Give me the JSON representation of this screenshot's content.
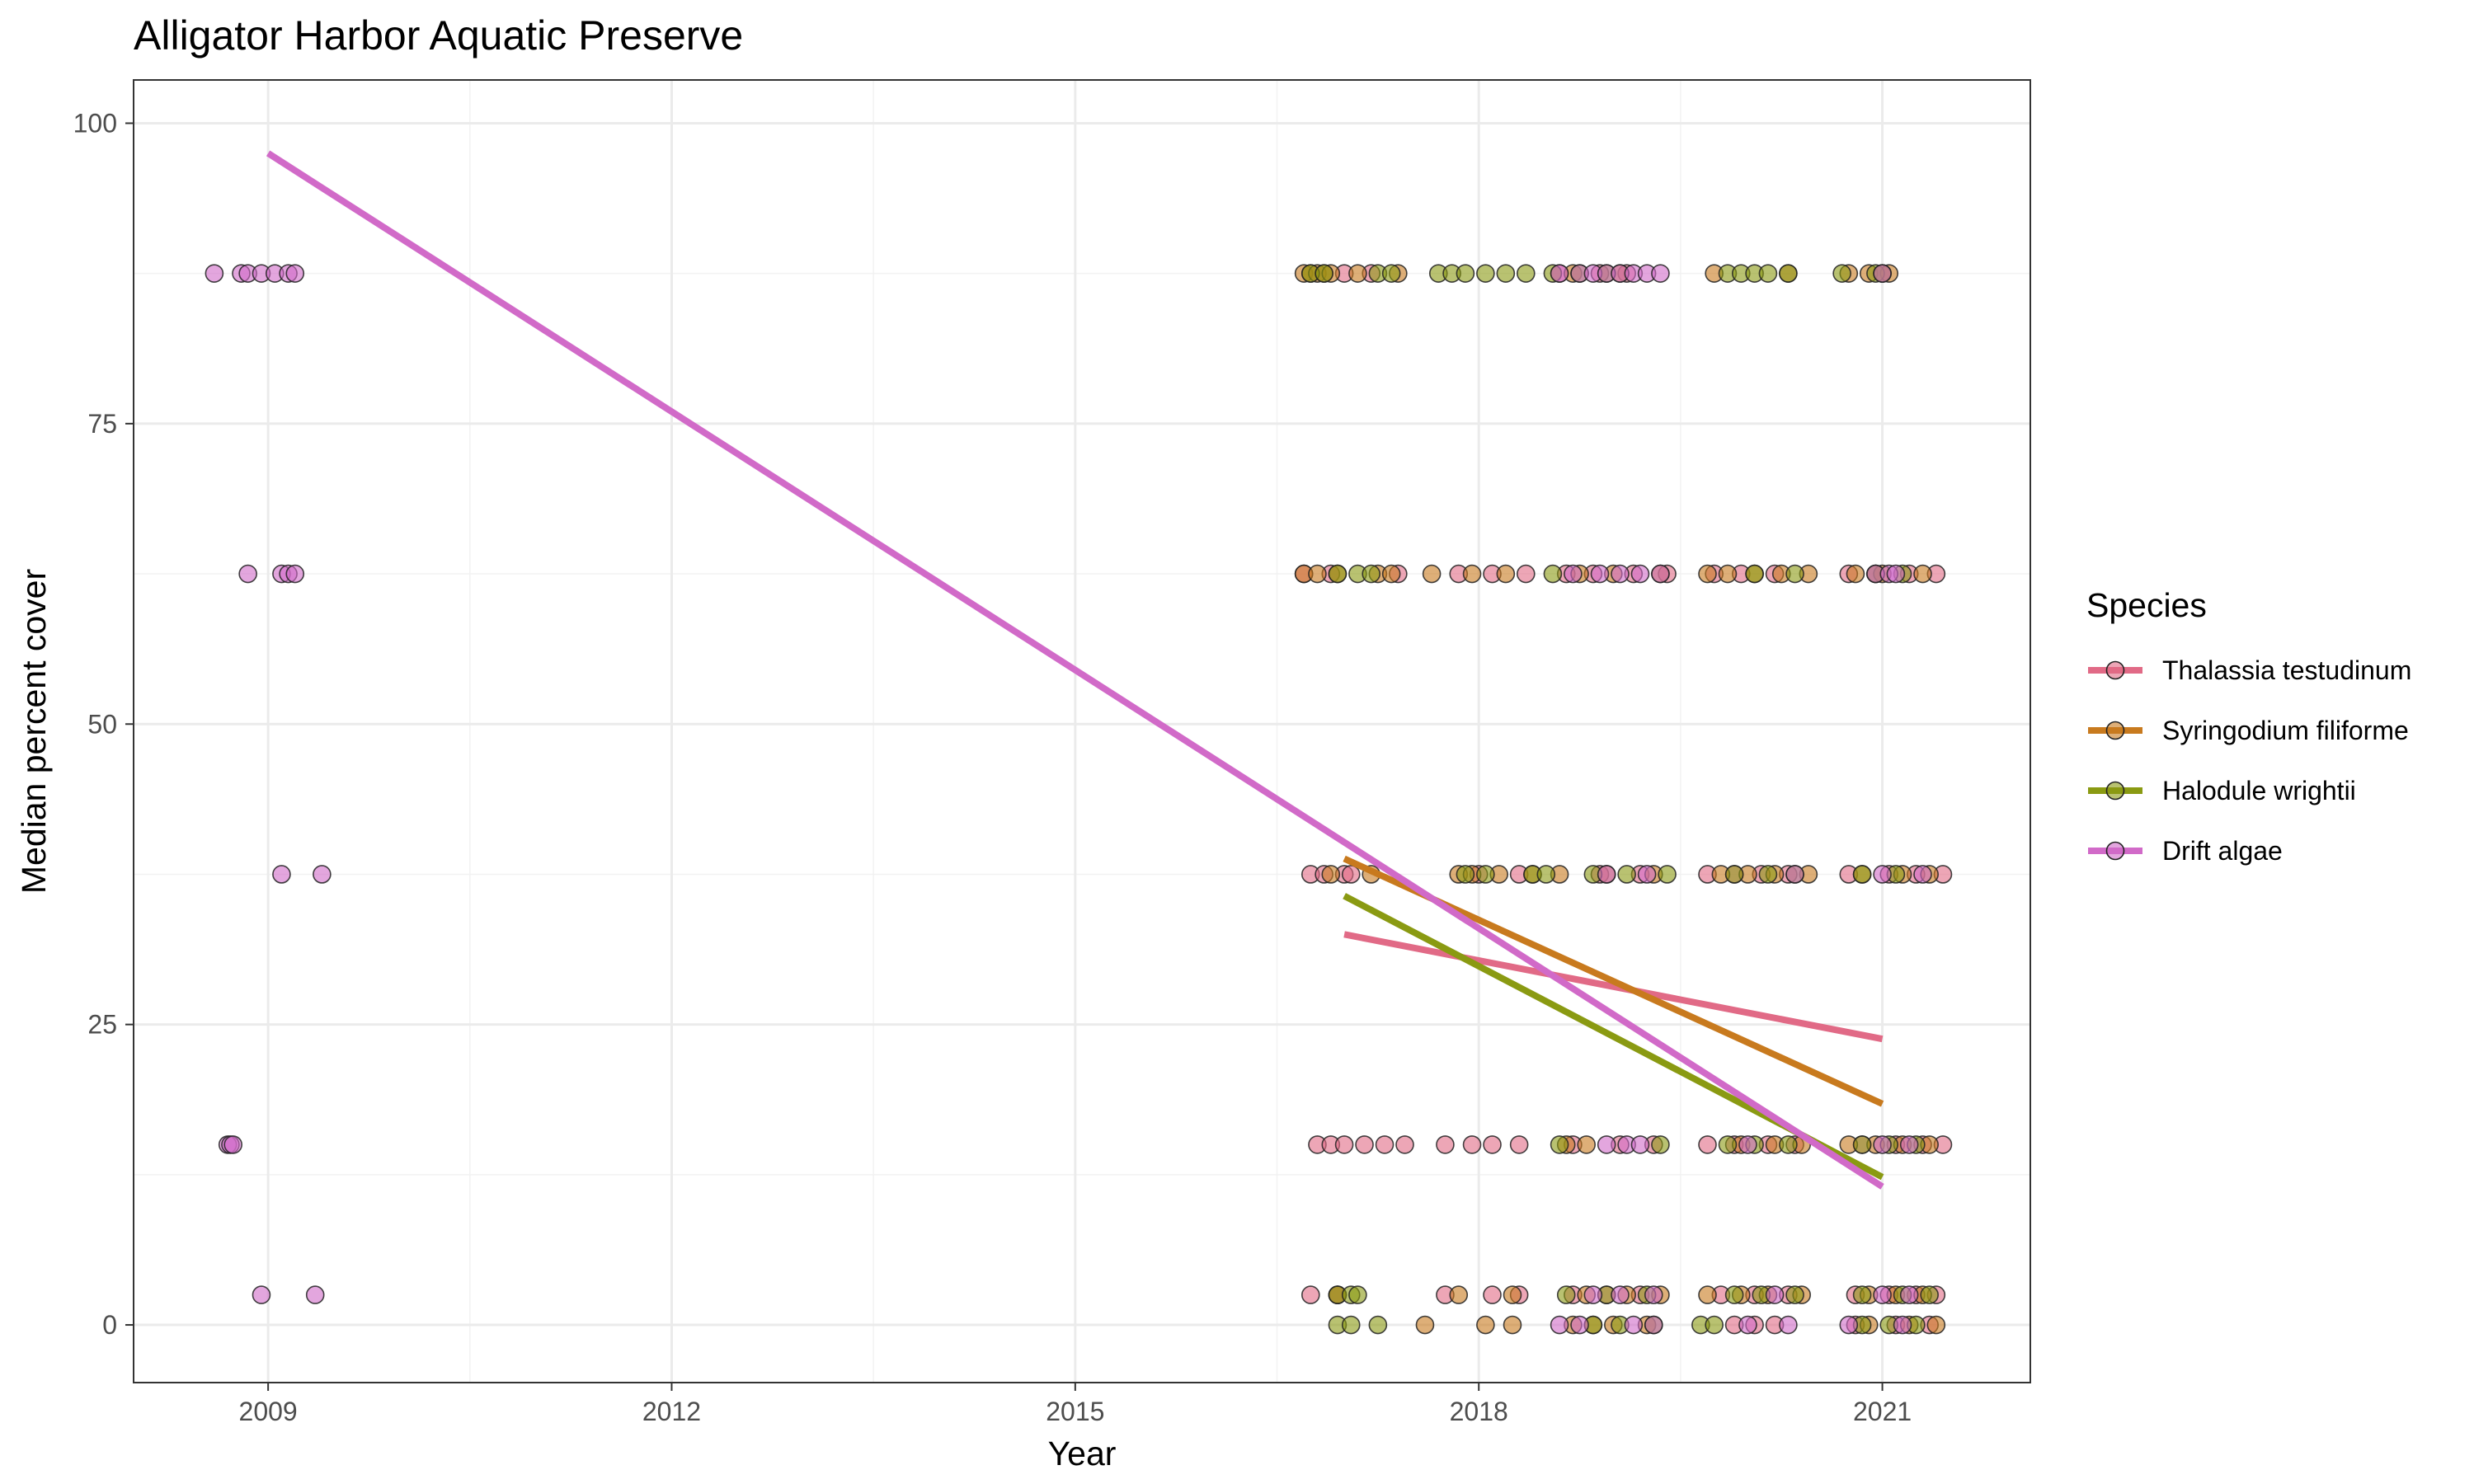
{
  "chart_data": {
    "type": "scatter",
    "title": "Alligator Harbor Aquatic Preserve",
    "xlabel": "Year",
    "ylabel": "Median percent cover",
    "xlim": [
      2008,
      2022.1
    ],
    "ylim": [
      -4.8,
      103.6
    ],
    "x_ticks": [
      2009,
      2012,
      2015,
      2018,
      2021
    ],
    "y_ticks": [
      0,
      25,
      50,
      75,
      100
    ],
    "grid": true,
    "legend_title": "Species",
    "legend_position": "right",
    "series": [
      {
        "name": "Thalassia testudinum",
        "color": "#e16a86",
        "trend": [
          [
            2017.0,
            32.5
          ],
          [
            2021.0,
            23.8
          ]
        ],
        "points": [
          [
            2016.75,
            37.5
          ],
          [
            2016.85,
            37.5
          ],
          [
            2017.0,
            37.5
          ],
          [
            2017.05,
            37.5
          ],
          [
            2016.8,
            15
          ],
          [
            2016.9,
            15
          ],
          [
            2017.0,
            15
          ],
          [
            2017.15,
            15
          ],
          [
            2017.3,
            15
          ],
          [
            2017.45,
            15
          ],
          [
            2016.75,
            2.5
          ],
          [
            2016.95,
            2.5
          ],
          [
            2016.7,
            62.5
          ],
          [
            2016.9,
            62.5
          ],
          [
            2017.4,
            62.5
          ],
          [
            2017.0,
            87.5
          ],
          [
            2017.2,
            87.5
          ],
          [
            2017.85,
            62.5
          ],
          [
            2018.1,
            62.5
          ],
          [
            2018.35,
            62.5
          ],
          [
            2018.0,
            37.5
          ],
          [
            2018.3,
            37.5
          ],
          [
            2017.75,
            15
          ],
          [
            2017.95,
            15
          ],
          [
            2018.1,
            15
          ],
          [
            2018.3,
            15
          ],
          [
            2017.75,
            2.5
          ],
          [
            2018.1,
            2.5
          ],
          [
            2018.3,
            2.5
          ],
          [
            2018.6,
            87.5
          ],
          [
            2018.9,
            87.5
          ],
          [
            2019.1,
            87.5
          ],
          [
            2018.65,
            62.5
          ],
          [
            2018.85,
            62.5
          ],
          [
            2019.15,
            62.5
          ],
          [
            2019.4,
            62.5
          ],
          [
            2018.9,
            37.5
          ],
          [
            2019.2,
            37.5
          ],
          [
            2018.7,
            15
          ],
          [
            2019.05,
            15
          ],
          [
            2019.3,
            15
          ],
          [
            2018.7,
            2.5
          ],
          [
            2018.95,
            2.5
          ],
          [
            2019.2,
            2.5
          ],
          [
            2019.75,
            62.5
          ],
          [
            2019.95,
            62.5
          ],
          [
            2020.2,
            62.5
          ],
          [
            2019.7,
            37.5
          ],
          [
            2019.9,
            37.5
          ],
          [
            2020.1,
            37.5
          ],
          [
            2020.3,
            37.5
          ],
          [
            2019.7,
            15
          ],
          [
            2019.9,
            15
          ],
          [
            2020.15,
            15
          ],
          [
            2020.35,
            15
          ],
          [
            2019.8,
            2.5
          ],
          [
            2020.05,
            2.5
          ],
          [
            2020.3,
            2.5
          ],
          [
            2019.9,
            0
          ],
          [
            2020.05,
            0
          ],
          [
            2020.2,
            0
          ],
          [
            2021.0,
            87.5
          ],
          [
            2020.75,
            62.5
          ],
          [
            2020.95,
            62.5
          ],
          [
            2021.2,
            62.5
          ],
          [
            2021.4,
            62.5
          ],
          [
            2020.75,
            37.5
          ],
          [
            2021.05,
            37.5
          ],
          [
            2021.25,
            37.5
          ],
          [
            2021.45,
            37.5
          ],
          [
            2020.85,
            15
          ],
          [
            2021.1,
            15
          ],
          [
            2021.3,
            15
          ],
          [
            2021.45,
            15
          ],
          [
            2020.8,
            2.5
          ],
          [
            2021.05,
            2.5
          ],
          [
            2021.25,
            2.5
          ],
          [
            2021.4,
            2.5
          ],
          [
            2020.8,
            0
          ],
          [
            2021.1,
            0
          ],
          [
            2021.35,
            0
          ]
        ]
      },
      {
        "name": "Syringodium filiforme",
        "color": "#c87a1e",
        "trend": [
          [
            2017.0,
            38.8
          ],
          [
            2021.0,
            18.4
          ]
        ],
        "points": [
          [
            2016.7,
            87.5
          ],
          [
            2016.75,
            87.5
          ],
          [
            2016.8,
            87.5
          ],
          [
            2016.85,
            87.5
          ],
          [
            2016.9,
            87.5
          ],
          [
            2017.1,
            87.5
          ],
          [
            2017.4,
            87.5
          ],
          [
            2016.7,
            62.5
          ],
          [
            2016.8,
            62.5
          ],
          [
            2016.95,
            62.5
          ],
          [
            2017.25,
            62.5
          ],
          [
            2017.35,
            62.5
          ],
          [
            2016.9,
            37.5
          ],
          [
            2017.2,
            37.5
          ],
          [
            2016.95,
            2.5
          ],
          [
            2017.65,
            62.5
          ],
          [
            2017.95,
            62.5
          ],
          [
            2018.2,
            62.5
          ],
          [
            2017.85,
            37.5
          ],
          [
            2017.95,
            37.5
          ],
          [
            2018.15,
            37.5
          ],
          [
            2018.4,
            37.5
          ],
          [
            2017.6,
            0
          ],
          [
            2018.05,
            0
          ],
          [
            2018.25,
            0
          ],
          [
            2018.25,
            2.5
          ],
          [
            2017.85,
            2.5
          ],
          [
            2018.7,
            87.5
          ],
          [
            2019.05,
            87.5
          ],
          [
            2018.75,
            62.5
          ],
          [
            2019.0,
            62.5
          ],
          [
            2019.35,
            62.5
          ],
          [
            2018.6,
            37.5
          ],
          [
            2018.95,
            37.5
          ],
          [
            2019.3,
            37.5
          ],
          [
            2018.65,
            15
          ],
          [
            2018.8,
            15
          ],
          [
            2018.8,
            2.5
          ],
          [
            2019.1,
            2.5
          ],
          [
            2019.35,
            2.5
          ],
          [
            2018.7,
            0
          ],
          [
            2018.85,
            0
          ],
          [
            2019.0,
            0
          ],
          [
            2019.25,
            0
          ],
          [
            2019.75,
            87.5
          ],
          [
            2020.3,
            87.5
          ],
          [
            2019.7,
            62.5
          ],
          [
            2019.85,
            62.5
          ],
          [
            2020.05,
            62.5
          ],
          [
            2020.25,
            62.5
          ],
          [
            2020.45,
            62.5
          ],
          [
            2019.8,
            37.5
          ],
          [
            2020.0,
            37.5
          ],
          [
            2020.2,
            37.5
          ],
          [
            2020.45,
            37.5
          ],
          [
            2019.95,
            15
          ],
          [
            2020.2,
            15
          ],
          [
            2020.4,
            15
          ],
          [
            2019.7,
            2.5
          ],
          [
            2019.95,
            2.5
          ],
          [
            2020.15,
            2.5
          ],
          [
            2020.4,
            2.5
          ],
          [
            2020.75,
            87.5
          ],
          [
            2020.9,
            87.5
          ],
          [
            2021.05,
            87.5
          ],
          [
            2020.8,
            62.5
          ],
          [
            2021.0,
            62.5
          ],
          [
            2021.3,
            62.5
          ],
          [
            2020.85,
            37.5
          ],
          [
            2021.15,
            37.5
          ],
          [
            2021.35,
            37.5
          ],
          [
            2020.75,
            15
          ],
          [
            2020.95,
            15
          ],
          [
            2021.15,
            15
          ],
          [
            2021.35,
            15
          ],
          [
            2020.9,
            2.5
          ],
          [
            2021.1,
            2.5
          ],
          [
            2021.3,
            2.5
          ],
          [
            2020.9,
            0
          ],
          [
            2021.2,
            0
          ],
          [
            2021.4,
            0
          ]
        ]
      },
      {
        "name": "Halodule wrightii",
        "color": "#8a9a12",
        "trend": [
          [
            2017.0,
            35.7
          ],
          [
            2021.0,
            12.3
          ]
        ],
        "points": [
          [
            2016.75,
            87.5
          ],
          [
            2016.85,
            87.5
          ],
          [
            2017.25,
            87.5
          ],
          [
            2017.35,
            87.5
          ],
          [
            2016.95,
            62.5
          ],
          [
            2017.1,
            62.5
          ],
          [
            2017.2,
            62.5
          ],
          [
            2016.95,
            2.5
          ],
          [
            2017.05,
            2.5
          ],
          [
            2017.1,
            2.5
          ],
          [
            2016.95,
            0
          ],
          [
            2017.05,
            0
          ],
          [
            2017.25,
            0
          ],
          [
            2017.7,
            87.5
          ],
          [
            2017.8,
            87.5
          ],
          [
            2017.9,
            87.5
          ],
          [
            2018.05,
            87.5
          ],
          [
            2018.2,
            87.5
          ],
          [
            2018.35,
            87.5
          ],
          [
            2017.9,
            37.5
          ],
          [
            2018.05,
            37.5
          ],
          [
            2018.4,
            37.5
          ],
          [
            2018.5,
            37.5
          ],
          [
            2018.85,
            37.5
          ],
          [
            2019.1,
            37.5
          ],
          [
            2019.4,
            37.5
          ],
          [
            2018.55,
            87.5
          ],
          [
            2018.75,
            87.5
          ],
          [
            2018.95,
            87.5
          ],
          [
            2018.55,
            62.5
          ],
          [
            2018.6,
            15
          ],
          [
            2019.35,
            15
          ],
          [
            2018.65,
            2.5
          ],
          [
            2018.95,
            2.5
          ],
          [
            2019.25,
            2.5
          ],
          [
            2018.85,
            0
          ],
          [
            2019.05,
            0
          ],
          [
            2019.3,
            0
          ],
          [
            2019.85,
            87.5
          ],
          [
            2019.95,
            87.5
          ],
          [
            2020.05,
            87.5
          ],
          [
            2020.15,
            87.5
          ],
          [
            2020.3,
            87.5
          ],
          [
            2020.05,
            62.5
          ],
          [
            2020.35,
            62.5
          ],
          [
            2019.9,
            37.5
          ],
          [
            2020.15,
            37.5
          ],
          [
            2020.35,
            37.5
          ],
          [
            2019.85,
            15
          ],
          [
            2020.05,
            15
          ],
          [
            2020.3,
            15
          ],
          [
            2019.9,
            2.5
          ],
          [
            2020.1,
            2.5
          ],
          [
            2020.35,
            2.5
          ],
          [
            2019.65,
            0
          ],
          [
            2019.75,
            0
          ],
          [
            2020.7,
            87.5
          ],
          [
            2020.95,
            87.5
          ],
          [
            2021.0,
            87.5
          ],
          [
            2020.95,
            62.5
          ],
          [
            2021.15,
            62.5
          ],
          [
            2020.85,
            37.5
          ],
          [
            2021.1,
            37.5
          ],
          [
            2020.85,
            15
          ],
          [
            2021.05,
            15
          ],
          [
            2021.25,
            15
          ],
          [
            2020.85,
            2.5
          ],
          [
            2021.15,
            2.5
          ],
          [
            2021.35,
            2.5
          ],
          [
            2020.85,
            0
          ],
          [
            2021.05,
            0
          ],
          [
            2021.25,
            0
          ]
        ]
      },
      {
        "name": "Drift algae",
        "color": "#d16ac8",
        "trend": [
          [
            2009.0,
            97.5
          ],
          [
            2021.0,
            11.5
          ]
        ],
        "points": [
          [
            2008.6,
            87.5
          ],
          [
            2008.8,
            87.5
          ],
          [
            2008.85,
            87.5
          ],
          [
            2008.95,
            87.5
          ],
          [
            2009.05,
            87.5
          ],
          [
            2009.15,
            87.5
          ],
          [
            2009.2,
            87.5
          ],
          [
            2008.85,
            62.5
          ],
          [
            2009.1,
            62.5
          ],
          [
            2009.15,
            62.5
          ],
          [
            2009.2,
            62.5
          ],
          [
            2009.1,
            37.5
          ],
          [
            2009.4,
            37.5
          ],
          [
            2008.7,
            15
          ],
          [
            2008.72,
            15
          ],
          [
            2008.74,
            15
          ],
          [
            2008.95,
            2.5
          ],
          [
            2009.35,
            2.5
          ],
          [
            2018.6,
            87.5
          ],
          [
            2018.75,
            87.5
          ],
          [
            2018.85,
            87.5
          ],
          [
            2018.95,
            87.5
          ],
          [
            2019.05,
            87.5
          ],
          [
            2019.15,
            87.5
          ],
          [
            2019.25,
            87.5
          ],
          [
            2019.35,
            87.5
          ],
          [
            2018.7,
            62.5
          ],
          [
            2018.9,
            62.5
          ],
          [
            2019.05,
            62.5
          ],
          [
            2019.2,
            62.5
          ],
          [
            2019.35,
            62.5
          ],
          [
            2018.95,
            37.5
          ],
          [
            2019.25,
            37.5
          ],
          [
            2018.95,
            15
          ],
          [
            2019.1,
            15
          ],
          [
            2019.2,
            15
          ],
          [
            2018.85,
            2.5
          ],
          [
            2019.05,
            2.5
          ],
          [
            2019.3,
            2.5
          ],
          [
            2018.6,
            0
          ],
          [
            2018.75,
            0
          ],
          [
            2019.15,
            0
          ],
          [
            2019.3,
            0
          ],
          [
            2020.35,
            37.5
          ],
          [
            2020.0,
            15
          ],
          [
            2020.2,
            2.5
          ],
          [
            2020.0,
            0
          ],
          [
            2020.3,
            0
          ],
          [
            2021.0,
            87.5
          ],
          [
            2020.95,
            62.5
          ],
          [
            2021.05,
            62.5
          ],
          [
            2021.1,
            62.5
          ],
          [
            2021.0,
            37.5
          ],
          [
            2021.3,
            37.5
          ],
          [
            2021.0,
            15
          ],
          [
            2021.2,
            15
          ],
          [
            2021.0,
            2.5
          ],
          [
            2021.2,
            2.5
          ],
          [
            2020.75,
            0
          ],
          [
            2021.15,
            0
          ]
        ]
      }
    ]
  }
}
